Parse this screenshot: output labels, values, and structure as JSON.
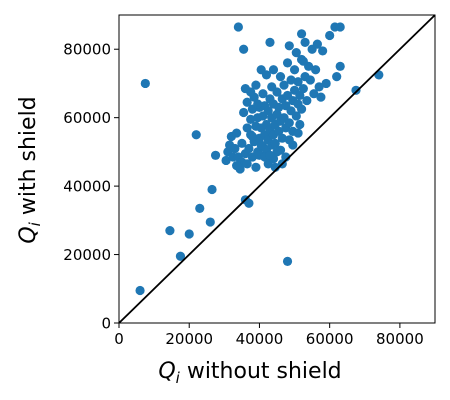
{
  "chart_data": {
    "type": "scatter",
    "xlabel": {
      "symbol": "Q",
      "sub": "i",
      "text": " without shield"
    },
    "ylabel": {
      "symbol": "Q",
      "sub": "i",
      "text": " with shield"
    },
    "xlim": [
      0,
      90000
    ],
    "ylim": [
      0,
      90000
    ],
    "xticks": [
      0,
      20000,
      40000,
      60000,
      80000
    ],
    "yticks": [
      0,
      20000,
      40000,
      60000,
      80000
    ],
    "xtick_labels": [
      "0",
      "20000",
      "40000",
      "60000",
      "80000"
    ],
    "ytick_labels": [
      "0",
      "20000",
      "40000",
      "60000",
      "80000"
    ],
    "grid": false,
    "marker_color": "#1f77b4",
    "reference_line": {
      "kind": "y=x",
      "color": "#000000"
    },
    "series": [
      {
        "points": [
          [
            6000,
            9500
          ],
          [
            7500,
            70000
          ],
          [
            14500,
            27000
          ],
          [
            17500,
            19500
          ],
          [
            20000,
            26000
          ],
          [
            22000,
            55000
          ],
          [
            23000,
            33500
          ],
          [
            26000,
            29500
          ],
          [
            26500,
            39000
          ],
          [
            27500,
            49000
          ],
          [
            34000,
            86500
          ],
          [
            35500,
            80000
          ],
          [
            36000,
            36000
          ],
          [
            37000,
            35000
          ],
          [
            46500,
            46500
          ],
          [
            48000,
            18000
          ],
          [
            52000,
            84500
          ],
          [
            60000,
            84000
          ],
          [
            61500,
            86500
          ],
          [
            63000,
            86500
          ],
          [
            67500,
            68000
          ],
          [
            74000,
            72500
          ],
          [
            59000,
            70000
          ],
          [
            62000,
            72000
          ],
          [
            63000,
            75000
          ],
          [
            30500,
            47500
          ],
          [
            31000,
            50000
          ],
          [
            31500,
            52000
          ],
          [
            32000,
            54500
          ],
          [
            32500,
            48500
          ],
          [
            33000,
            51000
          ],
          [
            33500,
            55500
          ],
          [
            34000,
            48500
          ],
          [
            34500,
            45000
          ],
          [
            35000,
            47000
          ],
          [
            35000,
            52500
          ],
          [
            35500,
            61500
          ],
          [
            36000,
            49500
          ],
          [
            36500,
            57000
          ],
          [
            36500,
            64500
          ],
          [
            37000,
            51000
          ],
          [
            37500,
            55000
          ],
          [
            37500,
            59500
          ],
          [
            38000,
            48500
          ],
          [
            38000,
            62500
          ],
          [
            38500,
            53000
          ],
          [
            38500,
            66000
          ],
          [
            39000,
            57500
          ],
          [
            39000,
            69500
          ],
          [
            39500,
            50000
          ],
          [
            39500,
            60000
          ],
          [
            40000,
            49000
          ],
          [
            40000,
            54000
          ],
          [
            40000,
            63000
          ],
          [
            40500,
            57000
          ],
          [
            40500,
            74000
          ],
          [
            41000,
            51500
          ],
          [
            41000,
            60500
          ],
          [
            41000,
            67000
          ],
          [
            41500,
            55000
          ],
          [
            41500,
            63500
          ],
          [
            42000,
            50500
          ],
          [
            42000,
            58000
          ],
          [
            42000,
            72500
          ],
          [
            42500,
            53500
          ],
          [
            42500,
            62000
          ],
          [
            43000,
            56500
          ],
          [
            43000,
            65500
          ],
          [
            43000,
            82000
          ],
          [
            43500,
            52000
          ],
          [
            43500,
            60000
          ],
          [
            43500,
            69000
          ],
          [
            44000,
            55000
          ],
          [
            44000,
            64000
          ],
          [
            44000,
            74000
          ],
          [
            44500,
            58000
          ],
          [
            44500,
            52500
          ],
          [
            45000,
            61000
          ],
          [
            45000,
            67500
          ],
          [
            45500,
            56000
          ],
          [
            45500,
            63000
          ],
          [
            46000,
            59000
          ],
          [
            46000,
            72000
          ],
          [
            46500,
            54000
          ],
          [
            46500,
            65500
          ],
          [
            47000,
            60000
          ],
          [
            47000,
            69500
          ],
          [
            47500,
            57000
          ],
          [
            47500,
            63500
          ],
          [
            48000,
            76000
          ],
          [
            48000,
            66500
          ],
          [
            48500,
            58500
          ],
          [
            48500,
            81000
          ],
          [
            49000,
            62000
          ],
          [
            49000,
            71000
          ],
          [
            49500,
            65000
          ],
          [
            49500,
            56000
          ],
          [
            50000,
            68000
          ],
          [
            50000,
            74000
          ],
          [
            50500,
            60500
          ],
          [
            50500,
            79000
          ],
          [
            51000,
            64000
          ],
          [
            51000,
            70500
          ],
          [
            51500,
            66500
          ],
          [
            51500,
            58000
          ],
          [
            52000,
            62500
          ],
          [
            52000,
            77000
          ],
          [
            52500,
            68500
          ],
          [
            53000,
            72000
          ],
          [
            53000,
            82000
          ],
          [
            53500,
            65000
          ],
          [
            54000,
            75000
          ],
          [
            54500,
            71000
          ],
          [
            55000,
            80000
          ],
          [
            55500,
            67000
          ],
          [
            56000,
            74000
          ],
          [
            56500,
            81500
          ],
          [
            57000,
            69000
          ],
          [
            57500,
            66000
          ],
          [
            58000,
            79500
          ],
          [
            42500,
            46500
          ],
          [
            44000,
            48000
          ],
          [
            46000,
            50500
          ],
          [
            47500,
            48500
          ],
          [
            49500,
            52000
          ],
          [
            51000,
            55500
          ],
          [
            48500,
            53500
          ],
          [
            45000,
            50000
          ],
          [
            39000,
            45500
          ],
          [
            36500,
            46500
          ],
          [
            33500,
            46000
          ],
          [
            38000,
            54500
          ],
          [
            40500,
            52000
          ],
          [
            41500,
            48500
          ],
          [
            43000,
            49000
          ],
          [
            44500,
            45500
          ],
          [
            39500,
            64000
          ],
          [
            37500,
            67500
          ],
          [
            36000,
            68500
          ],
          [
            52500,
            76500
          ]
        ]
      }
    ]
  }
}
